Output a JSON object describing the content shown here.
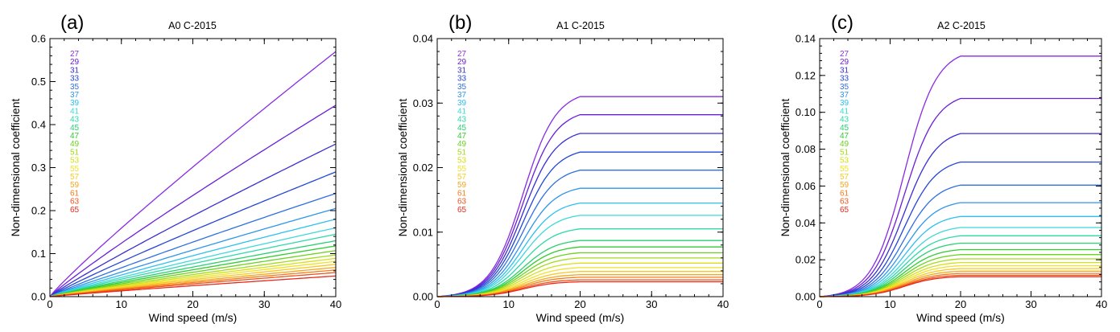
{
  "chart_data": [
    {
      "type": "line",
      "panel_label": "(a)",
      "title": "A0 C-2015",
      "xlabel": "Wind speed (m/s)",
      "ylabel": "Non-dimensional coefficient",
      "xlim": [
        0,
        40
      ],
      "ylim": [
        0,
        0.6
      ],
      "xticks": [
        "0",
        "10",
        "20",
        "30",
        "40"
      ],
      "yticks": [
        "0.0",
        "0.1",
        "0.2",
        "0.3",
        "0.4",
        "0.5",
        "0.6"
      ],
      "legend": [
        "27",
        "29",
        "31",
        "33",
        "35",
        "37",
        "39",
        "41",
        "43",
        "45",
        "47",
        "49",
        "51",
        "53",
        "55",
        "57",
        "59",
        "61",
        "63",
        "65"
      ],
      "curve_shape": "growing",
      "series": [
        {
          "name": "27",
          "final_value": 0.57
        },
        {
          "name": "29",
          "final_value": 0.445
        },
        {
          "name": "31",
          "final_value": 0.355
        },
        {
          "name": "33",
          "final_value": 0.29
        },
        {
          "name": "35",
          "final_value": 0.24
        },
        {
          "name": "37",
          "final_value": 0.205
        },
        {
          "name": "39",
          "final_value": 0.18
        },
        {
          "name": "41",
          "final_value": 0.16
        },
        {
          "name": "43",
          "final_value": 0.145
        },
        {
          "name": "45",
          "final_value": 0.13
        },
        {
          "name": "47",
          "final_value": 0.118
        },
        {
          "name": "49",
          "final_value": 0.107
        },
        {
          "name": "51",
          "final_value": 0.097
        },
        {
          "name": "53",
          "final_value": 0.089
        },
        {
          "name": "55",
          "final_value": 0.082
        },
        {
          "name": "57",
          "final_value": 0.075
        },
        {
          "name": "59",
          "final_value": 0.068
        },
        {
          "name": "61",
          "final_value": 0.062
        },
        {
          "name": "63",
          "final_value": 0.056
        },
        {
          "name": "65",
          "final_value": 0.048
        }
      ]
    },
    {
      "type": "line",
      "panel_label": "(b)",
      "title": "A1 C-2015",
      "xlabel": "Wind speed (m/s)",
      "ylabel": "Non-dimensional coefficient",
      "xlim": [
        0,
        40
      ],
      "ylim": [
        0,
        0.04
      ],
      "xticks": [
        "0",
        "10",
        "20",
        "30",
        "40"
      ],
      "yticks": [
        "0.00",
        "0.01",
        "0.02",
        "0.03",
        "0.04"
      ],
      "legend": [
        "27",
        "29",
        "31",
        "33",
        "35",
        "37",
        "39",
        "41",
        "43",
        "45",
        "47",
        "49",
        "51",
        "53",
        "55",
        "57",
        "59",
        "61",
        "63",
        "65"
      ],
      "curve_shape": "saturating",
      "series": [
        {
          "name": "27",
          "final_value": 0.031
        },
        {
          "name": "29",
          "final_value": 0.0282
        },
        {
          "name": "31",
          "final_value": 0.0253
        },
        {
          "name": "33",
          "final_value": 0.0224
        },
        {
          "name": "35",
          "final_value": 0.0196
        },
        {
          "name": "37",
          "final_value": 0.0168
        },
        {
          "name": "39",
          "final_value": 0.0145
        },
        {
          "name": "41",
          "final_value": 0.0126
        },
        {
          "name": "43",
          "final_value": 0.0105
        },
        {
          "name": "45",
          "final_value": 0.0087
        },
        {
          "name": "47",
          "final_value": 0.0077
        },
        {
          "name": "49",
          "final_value": 0.0068
        },
        {
          "name": "51",
          "final_value": 0.006
        },
        {
          "name": "53",
          "final_value": 0.0052
        },
        {
          "name": "55",
          "final_value": 0.0045
        },
        {
          "name": "57",
          "final_value": 0.0039
        },
        {
          "name": "59",
          "final_value": 0.0034
        },
        {
          "name": "61",
          "final_value": 0.003
        },
        {
          "name": "63",
          "final_value": 0.0026
        },
        {
          "name": "65",
          "final_value": 0.0023
        }
      ]
    },
    {
      "type": "line",
      "panel_label": "(c)",
      "title": "A2 C-2015",
      "xlabel": "Wind speed (m/s)",
      "ylabel": "Non-dimensional coefficient",
      "xlim": [
        0,
        40
      ],
      "ylim": [
        0,
        0.14
      ],
      "xticks": [
        "0",
        "10",
        "20",
        "30",
        "40"
      ],
      "yticks": [
        "0.00",
        "0.02",
        "0.04",
        "0.06",
        "0.08",
        "0.10",
        "0.12",
        "0.14"
      ],
      "legend": [
        "27",
        "29",
        "31",
        "33",
        "35",
        "37",
        "39",
        "41",
        "43",
        "45",
        "47",
        "49",
        "51",
        "53",
        "55",
        "57",
        "59",
        "61",
        "63",
        "65"
      ],
      "curve_shape": "saturating",
      "series": [
        {
          "name": "27",
          "final_value": 0.1305
        },
        {
          "name": "29",
          "final_value": 0.1075
        },
        {
          "name": "31",
          "final_value": 0.0885
        },
        {
          "name": "33",
          "final_value": 0.073
        },
        {
          "name": "35",
          "final_value": 0.0605
        },
        {
          "name": "37",
          "final_value": 0.051
        },
        {
          "name": "39",
          "final_value": 0.0435
        },
        {
          "name": "41",
          "final_value": 0.0375
        },
        {
          "name": "43",
          "final_value": 0.033
        },
        {
          "name": "45",
          "final_value": 0.029
        },
        {
          "name": "47",
          "final_value": 0.0255
        },
        {
          "name": "49",
          "final_value": 0.0228
        },
        {
          "name": "51",
          "final_value": 0.0205
        },
        {
          "name": "53",
          "final_value": 0.0185
        },
        {
          "name": "55",
          "final_value": 0.0168
        },
        {
          "name": "57",
          "final_value": 0.0152
        },
        {
          "name": "59",
          "final_value": 0.0138
        },
        {
          "name": "61",
          "final_value": 0.0126
        },
        {
          "name": "63",
          "final_value": 0.0116
        },
        {
          "name": "65",
          "final_value": 0.0108
        }
      ]
    }
  ],
  "series_colors": [
    "#8a2be2",
    "#6a1fd8",
    "#3a2fd0",
    "#2346d6",
    "#2f6fe0",
    "#2f95ea",
    "#2cc0ee",
    "#3fd8d8",
    "#2ed8a8",
    "#29d070",
    "#31cc2e",
    "#6ad31f",
    "#a3db17",
    "#d3e01a",
    "#f1e12a",
    "#f8c81f",
    "#f7a51d",
    "#f47d1b",
    "#f0521c",
    "#ea2a1a"
  ]
}
